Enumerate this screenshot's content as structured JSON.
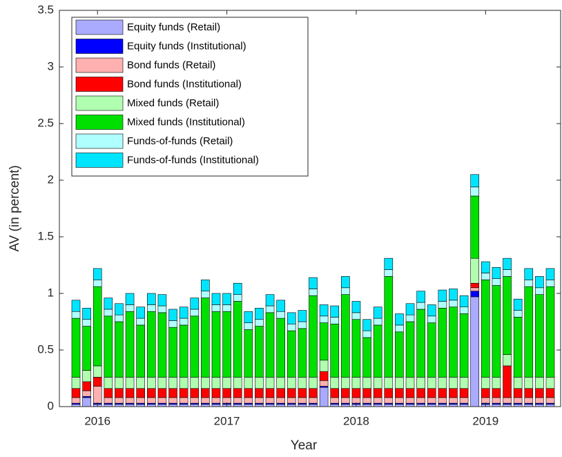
{
  "chart_data": {
    "type": "stacked-bar",
    "xlabel": "Year",
    "ylabel": "AV (in percent)",
    "categories": [
      null,
      null,
      "2016",
      null,
      null,
      null,
      null,
      null,
      null,
      null,
      null,
      null,
      null,
      null,
      "2017",
      null,
      null,
      null,
      null,
      null,
      null,
      null,
      null,
      null,
      null,
      null,
      "2018",
      null,
      null,
      null,
      null,
      null,
      null,
      null,
      null,
      null,
      null,
      null,
      "2019",
      null,
      null,
      null,
      null,
      null,
      null
    ],
    "ylim": [
      0,
      3.5
    ],
    "yticks": [
      0,
      0.5,
      1,
      1.5,
      2,
      2.5,
      3,
      3.5
    ],
    "legend": "upper-left",
    "series": [
      {
        "name": "Equity funds (Retail)",
        "color": "#aaaaff",
        "values": [
          0.02,
          0.08,
          0.02,
          0.02,
          0.02,
          0.02,
          0.02,
          0.02,
          0.02,
          0.02,
          0.02,
          0.02,
          0.02,
          0.02,
          0.02,
          0.02,
          0.02,
          0.02,
          0.02,
          0.02,
          0.02,
          0.02,
          0.02,
          0.17,
          0.02,
          0.02,
          0.02,
          0.02,
          0.02,
          0.02,
          0.02,
          0.02,
          0.02,
          0.02,
          0.02,
          0.02,
          0.02,
          0.97,
          0.02,
          0.02,
          0.02,
          0.02,
          0.02,
          0.02,
          0.02
        ]
      },
      {
        "name": "Equity funds (Institutional)",
        "color": "#0000ff",
        "values": [
          0.01,
          0.01,
          0.01,
          0.01,
          0.01,
          0.01,
          0.01,
          0.01,
          0.01,
          0.01,
          0.01,
          0.01,
          0.01,
          0.01,
          0.01,
          0.01,
          0.01,
          0.01,
          0.01,
          0.01,
          0.01,
          0.01,
          0.01,
          0.01,
          0.01,
          0.01,
          0.01,
          0.01,
          0.01,
          0.01,
          0.01,
          0.01,
          0.01,
          0.01,
          0.01,
          0.01,
          0.01,
          0.05,
          0.01,
          0.01,
          0.01,
          0.01,
          0.01,
          0.01,
          0.01
        ]
      },
      {
        "name": "Bond funds (Retail)",
        "color": "#ffb0b0",
        "values": [
          0.05,
          0.05,
          0.15,
          0.05,
          0.05,
          0.05,
          0.05,
          0.05,
          0.05,
          0.05,
          0.05,
          0.05,
          0.05,
          0.05,
          0.05,
          0.05,
          0.05,
          0.05,
          0.05,
          0.05,
          0.05,
          0.05,
          0.05,
          0.05,
          0.05,
          0.05,
          0.05,
          0.05,
          0.05,
          0.05,
          0.05,
          0.05,
          0.05,
          0.05,
          0.05,
          0.05,
          0.05,
          0.03,
          0.05,
          0.05,
          0.05,
          0.05,
          0.05,
          0.05,
          0.05
        ]
      },
      {
        "name": "Bond funds (Institutional)",
        "color": "#ff0000",
        "values": [
          0.08,
          0.08,
          0.08,
          0.08,
          0.08,
          0.08,
          0.08,
          0.08,
          0.08,
          0.08,
          0.08,
          0.08,
          0.08,
          0.08,
          0.08,
          0.08,
          0.08,
          0.08,
          0.08,
          0.08,
          0.08,
          0.08,
          0.08,
          0.08,
          0.08,
          0.08,
          0.08,
          0.08,
          0.08,
          0.08,
          0.08,
          0.08,
          0.08,
          0.08,
          0.08,
          0.08,
          0.08,
          0.04,
          0.08,
          0.08,
          0.28,
          0.08,
          0.08,
          0.08,
          0.08
        ]
      },
      {
        "name": "Mixed funds (Retail)",
        "color": "#b0ffb0",
        "values": [
          0.1,
          0.1,
          0.1,
          0.1,
          0.1,
          0.1,
          0.1,
          0.1,
          0.1,
          0.1,
          0.1,
          0.1,
          0.1,
          0.1,
          0.1,
          0.1,
          0.1,
          0.1,
          0.1,
          0.1,
          0.1,
          0.1,
          0.1,
          0.1,
          0.1,
          0.1,
          0.1,
          0.1,
          0.1,
          0.1,
          0.1,
          0.1,
          0.1,
          0.1,
          0.1,
          0.1,
          0.1,
          0.22,
          0.1,
          0.1,
          0.1,
          0.1,
          0.1,
          0.1,
          0.1
        ]
      },
      {
        "name": "Mixed funds (Institutional)",
        "color": "#00e000",
        "values": [
          0.52,
          0.39,
          0.7,
          0.54,
          0.49,
          0.58,
          0.46,
          0.58,
          0.57,
          0.44,
          0.46,
          0.54,
          0.7,
          0.58,
          0.58,
          0.67,
          0.42,
          0.45,
          0.57,
          0.52,
          0.41,
          0.43,
          0.72,
          0.33,
          0.47,
          0.73,
          0.51,
          0.35,
          0.46,
          0.89,
          0.4,
          0.49,
          0.6,
          0.48,
          0.61,
          0.62,
          0.56,
          0.55,
          0.86,
          0.81,
          0.69,
          0.53,
          0.8,
          0.73,
          0.8
        ]
      },
      {
        "name": "Funds-of-funds (Retail)",
        "color": "#b0ffff",
        "values": [
          0.06,
          0.06,
          0.06,
          0.06,
          0.06,
          0.06,
          0.06,
          0.06,
          0.06,
          0.06,
          0.06,
          0.06,
          0.06,
          0.06,
          0.06,
          0.06,
          0.06,
          0.06,
          0.06,
          0.06,
          0.06,
          0.06,
          0.06,
          0.06,
          0.06,
          0.06,
          0.06,
          0.06,
          0.06,
          0.06,
          0.06,
          0.06,
          0.06,
          0.06,
          0.06,
          0.06,
          0.06,
          0.08,
          0.06,
          0.06,
          0.06,
          0.06,
          0.06,
          0.06,
          0.06
        ]
      },
      {
        "name": "Funds-of-funds (Institutional)",
        "color": "#00e5ff",
        "values": [
          0.1,
          0.1,
          0.1,
          0.1,
          0.1,
          0.1,
          0.1,
          0.1,
          0.1,
          0.1,
          0.1,
          0.1,
          0.1,
          0.1,
          0.1,
          0.1,
          0.1,
          0.1,
          0.1,
          0.1,
          0.1,
          0.1,
          0.1,
          0.1,
          0.1,
          0.1,
          0.1,
          0.1,
          0.1,
          0.1,
          0.1,
          0.1,
          0.1,
          0.1,
          0.1,
          0.1,
          0.1,
          0.11,
          0.1,
          0.1,
          0.1,
          0.1,
          0.1,
          0.1,
          0.1
        ]
      }
    ]
  }
}
